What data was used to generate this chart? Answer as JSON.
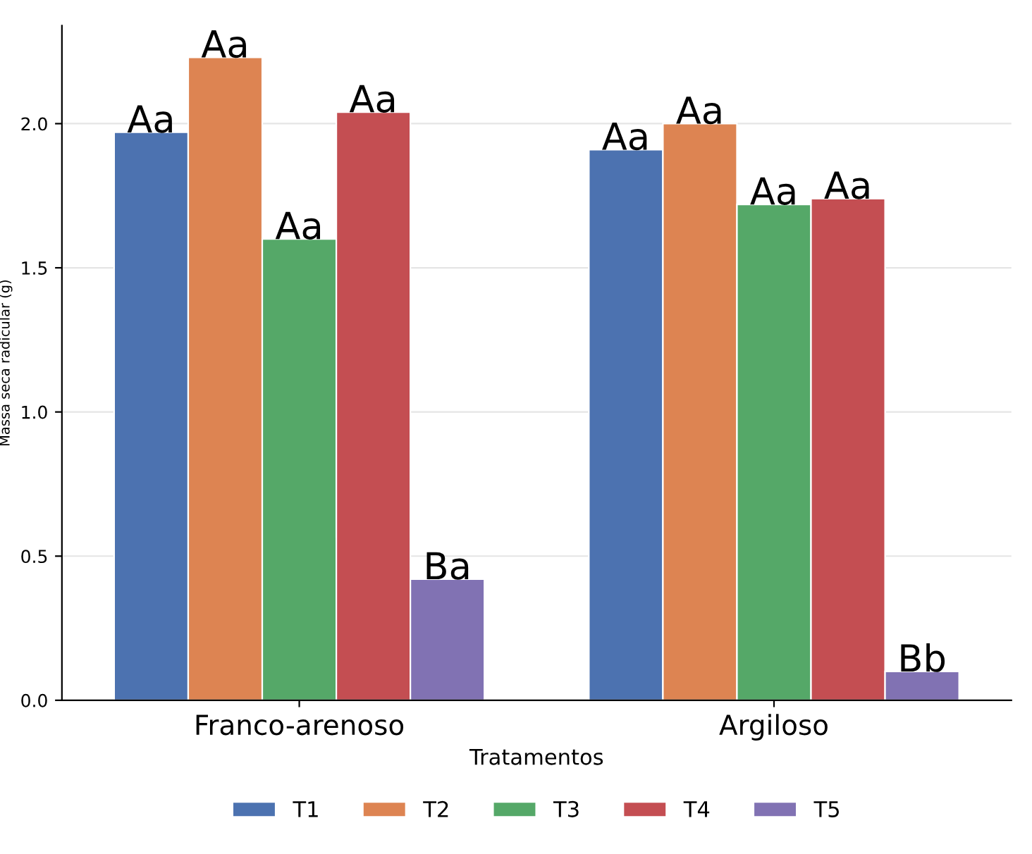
{
  "chart_data": {
    "type": "bar",
    "xlabel": "Tratamentos",
    "ylabel": "Massa seca radicular (g)",
    "categories": [
      "Franco-arenoso",
      "Argiloso"
    ],
    "series": [
      {
        "name": "T1",
        "color": "#4c72b0",
        "values": [
          1.97,
          1.91
        ],
        "value_labels": [
          "Aa",
          "Aa"
        ]
      },
      {
        "name": "T2",
        "color": "#dd8452",
        "values": [
          2.23,
          2.0
        ],
        "value_labels": [
          "Aa",
          "Aa"
        ]
      },
      {
        "name": "T3",
        "color": "#55a868",
        "values": [
          1.6,
          1.72
        ],
        "value_labels": [
          "Aa",
          "Aa"
        ]
      },
      {
        "name": "T4",
        "color": "#c44e52",
        "values": [
          2.04,
          1.74
        ],
        "value_labels": [
          "Aa",
          "Aa"
        ]
      },
      {
        "name": "T5",
        "color": "#8172b3",
        "values": [
          0.42,
          0.1
        ],
        "value_labels": [
          "Ba",
          "Bb"
        ]
      }
    ],
    "ylim": [
      0,
      2.34
    ],
    "yticks": [
      {
        "value": 0,
        "label": "0.0"
      },
      {
        "value": 0.5,
        "label": "0.5"
      },
      {
        "value": 1,
        "label": "1.0"
      },
      {
        "value": 1.5,
        "label": "1.5"
      },
      {
        "value": 2,
        "label": "2.0"
      }
    ],
    "grid": "y",
    "legend": "bottom"
  }
}
